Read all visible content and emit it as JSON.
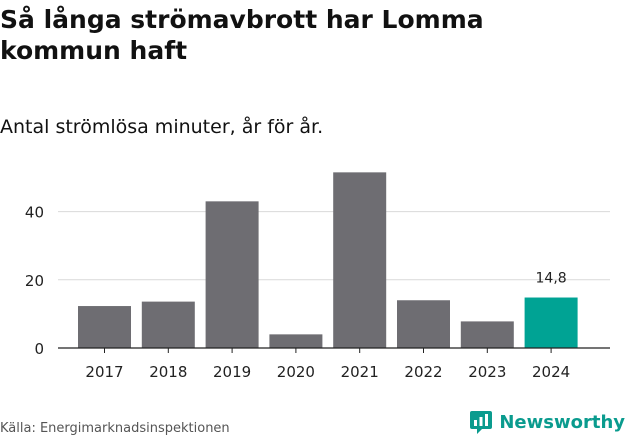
{
  "title": "Så långa strömavbrott har Lomma kommun haft",
  "subtitle": "Antal strömlösa minuter, år för år.",
  "source": "Källa: Energimarknadsinspektionen",
  "brand": {
    "name": "Newsworthy",
    "icon": "newsworthy-logo-icon"
  },
  "colors": {
    "bar": "#6e6d72",
    "highlight": "#00a394",
    "grid": "#d9d9d9",
    "axis": "#222222",
    "text": "#222222"
  },
  "chart_data": {
    "type": "bar",
    "categories": [
      "2017",
      "2018",
      "2019",
      "2020",
      "2021",
      "2022",
      "2023",
      "2024"
    ],
    "values": [
      12.3,
      13.6,
      43.0,
      4.0,
      51.5,
      14.0,
      7.8,
      14.8
    ],
    "highlight_index": 7,
    "data_labels": [
      {
        "index": 7,
        "text": "14,8"
      }
    ],
    "yticks": [
      0,
      20,
      40
    ],
    "ylim": [
      0,
      56
    ],
    "grid": true,
    "xlabel": "",
    "ylabel": ""
  }
}
